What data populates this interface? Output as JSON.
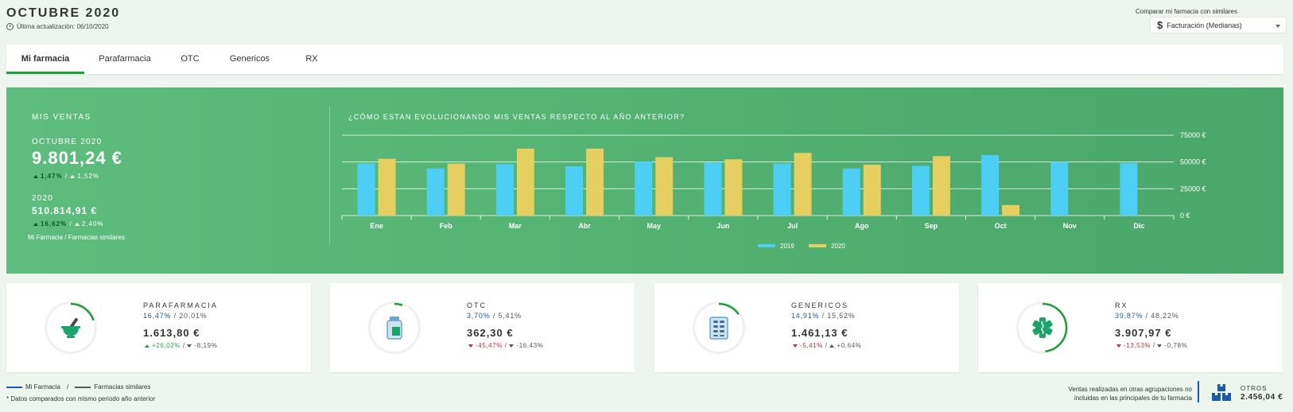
{
  "header": {
    "title": "OCTUBRE 2020",
    "last_update": "Última actualización: 06/10/2020",
    "compare_label": "Comparar mi farmacia con similares",
    "compare_select": {
      "icon": "dollar-icon",
      "value": "Facturación (Medianas)"
    }
  },
  "tabs": [
    {
      "label": "Mi farmacia",
      "active": true
    },
    {
      "label": "Parafarmacia",
      "active": false
    },
    {
      "label": "OTC",
      "active": false
    },
    {
      "label": "Genericos",
      "active": false
    },
    {
      "label": "RX",
      "active": false
    }
  ],
  "summary": {
    "section_label": "MIS VENTAS",
    "month_label": "OCTUBRE 2020",
    "month_amount": "9.801,24 €",
    "month_var_mine": "1,47%",
    "month_var_similar": "1,52%",
    "year_label": "2020",
    "year_amount": "510.814,91 €",
    "year_var_mine": "16,62%",
    "year_var_similar": "2,40%",
    "legend_mine": "Mi Farmacia",
    "legend_similar": "Farmacias similares"
  },
  "chart_title": "¿CÓMO ESTAN EVOLUCIONANDO MIS VENTAS RESPECTO AL AÑO ANTERIOR?",
  "chart_data": {
    "type": "bar",
    "title": "¿CÓMO ESTAN EVOLUCIONANDO MIS VENTAS RESPECTO AL AÑO ANTERIOR?",
    "categories": [
      "Ene",
      "Feb",
      "Mar",
      "Abr",
      "May",
      "Jun",
      "Jul",
      "Ago",
      "Sep",
      "Oct",
      "Nov",
      "Dic"
    ],
    "series": [
      {
        "name": "2019",
        "color": "#4dcff5",
        "values": [
          48500,
          44000,
          48000,
          46000,
          50500,
          49500,
          48500,
          44000,
          46500,
          56500,
          50000,
          49000
        ]
      },
      {
        "name": "2020",
        "color": "#e4cf60",
        "values": [
          53000,
          48500,
          62500,
          62500,
          54500,
          52500,
          58500,
          47500,
          55500,
          9800,
          null,
          null
        ]
      }
    ],
    "ylim": [
      0,
      75000
    ],
    "yticks": [
      0,
      25000,
      50000,
      75000
    ],
    "ytick_labels": [
      "0 €",
      "25000 €",
      "50000 €",
      "75000 €"
    ],
    "xlabel": "",
    "ylabel": "",
    "grid": true,
    "legend": "bottom-center"
  },
  "cards": [
    {
      "name": "parafarmacia",
      "title": "PARAFARMACIA",
      "pct_mine": "16,47%",
      "pct_similar": "20,01%",
      "amount": "1.613,80 €",
      "var_mine": "+26,02%",
      "var_mine_dir": "up",
      "var_similar": "-8,19%",
      "var_similar_dir": "down",
      "share": 0.2001,
      "icon": "mortar-pestle-icon"
    },
    {
      "name": "otc",
      "title": "OTC",
      "pct_mine": "3,70%",
      "pct_similar": "5,41%",
      "amount": "362,30 €",
      "var_mine": "-45,47%",
      "var_mine_dir": "down",
      "var_similar": "-16,43%",
      "var_similar_dir": "down",
      "share": 0.0541,
      "icon": "medicine-jar-icon"
    },
    {
      "name": "genericos",
      "title": "GENERICOS",
      "pct_mine": "14,91%",
      "pct_similar": "15,52%",
      "amount": "1.461,13 €",
      "var_mine": "-5,41%",
      "var_mine_dir": "down",
      "var_similar": "+0,64%",
      "var_similar_dir": "up",
      "share": 0.1552,
      "icon": "pill-blister-icon"
    },
    {
      "name": "rx",
      "title": "RX",
      "pct_mine": "39,87%",
      "pct_similar": "48,22%",
      "amount": "3.907,97 €",
      "var_mine": "-13,53%",
      "var_mine_dir": "down",
      "var_similar": "-0,78%",
      "var_similar_dir": "down",
      "share": 0.4822,
      "icon": "medical-cross-icon"
    }
  ],
  "footer": {
    "legend_mine": "Mi Farmacia",
    "legend_similar": "Farmacias similares",
    "note": "* Datos comparados con mismo periodo año anterior",
    "otros_note_1": "Ventas realizadas en otras agrupaciones no",
    "otros_note_2": "incluidas en las principales de tu farmacia",
    "otros_label": "OTROS",
    "otros_amount": "2.456,04 €"
  },
  "colors": {
    "mine": "#1b5aa6",
    "similar": "#555555",
    "accent": "#1f9a3c",
    "bar2019": "#4dcff5",
    "bar2020": "#e4cf60",
    "ring": "#1f9a3c"
  }
}
